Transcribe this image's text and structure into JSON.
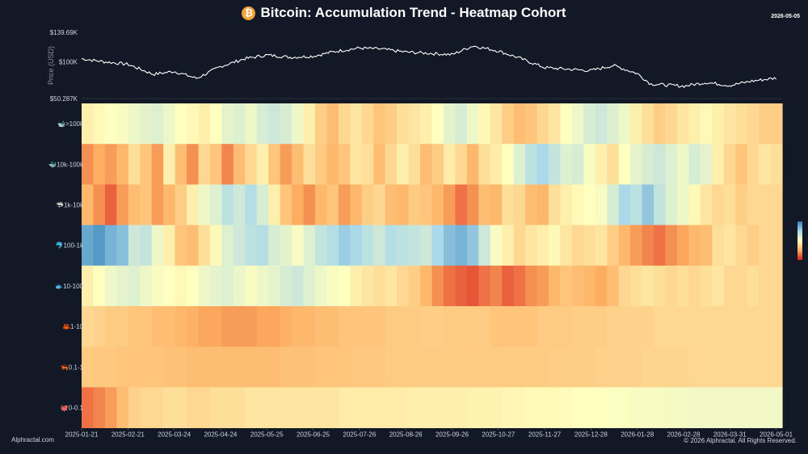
{
  "header": {
    "title": "Bitcoin: Accumulation Trend - Heatmap Cohort",
    "date": "2026-05-05",
    "icon": "bitcoin-icon",
    "icon_glyph": "₿"
  },
  "footer": {
    "left": "Alphractal.com",
    "right": "© 2026 Alphractal. All Rights Reserved."
  },
  "colors": {
    "background": "#121826",
    "price_line": "#ffffff",
    "scale": [
      "#2c7bb6",
      "#abd9e9",
      "#ffffbf",
      "#fdae61",
      "#d7191c"
    ]
  },
  "chart_data": [
    {
      "type": "line",
      "ylabel": "Price (USD)",
      "ytick_labels": [
        "$139.69K",
        "$100K",
        "$50.287K"
      ],
      "ylim": [
        50287,
        139690
      ],
      "x_start": "2025-01-21",
      "x_end": "2026-05-05",
      "series": [
        {
          "x": [
            "2025-01-21",
            "2025-02-05",
            "2025-02-21",
            "2025-03-10",
            "2025-03-24",
            "2025-04-08",
            "2025-04-24",
            "2025-05-10",
            "2025-05-25",
            "2025-06-10",
            "2025-06-25",
            "2025-07-10",
            "2025-07-26",
            "2025-08-10",
            "2025-08-26",
            "2025-09-10",
            "2025-09-26",
            "2025-10-10",
            "2025-10-27",
            "2025-11-10",
            "2025-11-27",
            "2025-12-12",
            "2025-12-28",
            "2026-01-12",
            "2026-01-28",
            "2026-02-06",
            "2026-02-28",
            "2026-03-15",
            "2026-03-31",
            "2026-04-15",
            "2026-05-01"
          ],
          "y": [
            104000,
            100000,
            96500,
            83000,
            87000,
            77500,
            93500,
            104000,
            109000,
            106000,
            107500,
            114000,
            118500,
            117000,
            113000,
            111500,
            109500,
            121500,
            114500,
            105000,
            92000,
            90000,
            88000,
            95000,
            84000,
            70000,
            67000,
            72000,
            68000,
            74000,
            78000
          ]
        }
      ]
    },
    {
      "type": "heatmap",
      "rows": [
        "🐋>100k",
        "🐳10k-100k",
        "🦈1k-10k",
        "🐬100-1k",
        "🐟10-100",
        "🦀1-10",
        "🦐0.1-1",
        "🐙0-0.1"
      ],
      "x_tick_labels": [
        "2025-01-21",
        "2025-02-21",
        "2025-03-24",
        "2025-04-24",
        "2025-05-25",
        "2025-06-25",
        "2025-07-26",
        "2025-08-26",
        "2025-09-26",
        "2025-10-27",
        "2025-11-27",
        "2025-12-28",
        "2026-01-28",
        "2026-02-28",
        "2026-03-31",
        "2026-05-01"
      ],
      "value_range": [
        0,
        1
      ],
      "column_count": 60,
      "values": [
        [
          0.55,
          0.52,
          0.5,
          0.48,
          0.45,
          0.42,
          0.4,
          0.45,
          0.5,
          0.52,
          0.55,
          0.5,
          0.42,
          0.4,
          0.45,
          0.38,
          0.35,
          0.38,
          0.45,
          0.55,
          0.65,
          0.7,
          0.62,
          0.58,
          0.62,
          0.68,
          0.65,
          0.6,
          0.58,
          0.55,
          0.5,
          0.42,
          0.38,
          0.45,
          0.52,
          0.58,
          0.65,
          0.7,
          0.68,
          0.62,
          0.58,
          0.5,
          0.45,
          0.38,
          0.35,
          0.4,
          0.45,
          0.55,
          0.6,
          0.65,
          0.62,
          0.58,
          0.55,
          0.52,
          0.55,
          0.58,
          0.6,
          0.62,
          0.65,
          0.65
        ],
        [
          0.8,
          0.75,
          0.78,
          0.72,
          0.6,
          0.68,
          0.78,
          0.55,
          0.7,
          0.8,
          0.62,
          0.68,
          0.82,
          0.7,
          0.62,
          0.55,
          0.68,
          0.78,
          0.7,
          0.6,
          0.66,
          0.72,
          0.68,
          0.58,
          0.6,
          0.7,
          0.62,
          0.55,
          0.6,
          0.7,
          0.66,
          0.56,
          0.62,
          0.72,
          0.6,
          0.56,
          0.5,
          0.4,
          0.3,
          0.25,
          0.32,
          0.4,
          0.38,
          0.48,
          0.55,
          0.6,
          0.5,
          0.42,
          0.38,
          0.35,
          0.4,
          0.45,
          0.38,
          0.42,
          0.55,
          0.62,
          0.68,
          0.62,
          0.58,
          0.6
        ],
        [
          0.72,
          0.8,
          0.88,
          0.78,
          0.7,
          0.68,
          0.78,
          0.72,
          0.65,
          0.55,
          0.45,
          0.4,
          0.3,
          0.35,
          0.28,
          0.38,
          0.55,
          0.68,
          0.75,
          0.8,
          0.72,
          0.68,
          0.78,
          0.72,
          0.65,
          0.62,
          0.7,
          0.72,
          0.66,
          0.68,
          0.72,
          0.78,
          0.85,
          0.8,
          0.7,
          0.72,
          0.6,
          0.62,
          0.7,
          0.72,
          0.6,
          0.55,
          0.52,
          0.5,
          0.48,
          0.38,
          0.25,
          0.3,
          0.2,
          0.32,
          0.4,
          0.45,
          0.52,
          0.58,
          0.62,
          0.6,
          0.65,
          0.62,
          0.62,
          0.62
        ],
        [
          0.12,
          0.08,
          0.15,
          0.18,
          0.35,
          0.32,
          0.45,
          0.55,
          0.68,
          0.7,
          0.6,
          0.52,
          0.4,
          0.35,
          0.3,
          0.28,
          0.38,
          0.42,
          0.48,
          0.4,
          0.32,
          0.28,
          0.22,
          0.25,
          0.3,
          0.35,
          0.28,
          0.3,
          0.32,
          0.35,
          0.25,
          0.18,
          0.15,
          0.2,
          0.35,
          0.48,
          0.55,
          0.62,
          0.58,
          0.55,
          0.52,
          0.58,
          0.62,
          0.6,
          0.58,
          0.65,
          0.72,
          0.78,
          0.82,
          0.85,
          0.8,
          0.76,
          0.72,
          0.7,
          0.6,
          0.58,
          0.62,
          0.65,
          0.62,
          0.62
        ],
        [
          0.55,
          0.5,
          0.45,
          0.42,
          0.4,
          0.45,
          0.48,
          0.5,
          0.52,
          0.5,
          0.45,
          0.42,
          0.4,
          0.44,
          0.48,
          0.45,
          0.42,
          0.38,
          0.35,
          0.4,
          0.45,
          0.48,
          0.5,
          0.55,
          0.58,
          0.6,
          0.58,
          0.62,
          0.65,
          0.72,
          0.8,
          0.85,
          0.88,
          0.9,
          0.85,
          0.82,
          0.88,
          0.85,
          0.8,
          0.78,
          0.72,
          0.68,
          0.7,
          0.72,
          0.75,
          0.7,
          0.62,
          0.6,
          0.58,
          0.6,
          0.62,
          0.6,
          0.62,
          0.6,
          0.58,
          0.62,
          0.62,
          0.6,
          0.62,
          0.62
        ],
        [
          0.62,
          0.64,
          0.66,
          0.66,
          0.68,
          0.68,
          0.7,
          0.7,
          0.72,
          0.74,
          0.76,
          0.76,
          0.78,
          0.78,
          0.78,
          0.76,
          0.76,
          0.74,
          0.72,
          0.72,
          0.7,
          0.7,
          0.68,
          0.68,
          0.68,
          0.68,
          0.66,
          0.66,
          0.66,
          0.65,
          0.65,
          0.66,
          0.66,
          0.66,
          0.66,
          0.68,
          0.68,
          0.68,
          0.68,
          0.66,
          0.66,
          0.66,
          0.65,
          0.65,
          0.65,
          0.64,
          0.64,
          0.64,
          0.64,
          0.62,
          0.62,
          0.62,
          0.62,
          0.62,
          0.62,
          0.62,
          0.62,
          0.62,
          0.62,
          0.62
        ],
        [
          0.66,
          0.67,
          0.67,
          0.68,
          0.68,
          0.68,
          0.68,
          0.69,
          0.69,
          0.7,
          0.7,
          0.7,
          0.7,
          0.7,
          0.7,
          0.7,
          0.7,
          0.69,
          0.69,
          0.69,
          0.68,
          0.68,
          0.68,
          0.67,
          0.67,
          0.67,
          0.66,
          0.66,
          0.66,
          0.66,
          0.66,
          0.66,
          0.66,
          0.66,
          0.66,
          0.66,
          0.66,
          0.66,
          0.66,
          0.66,
          0.65,
          0.65,
          0.65,
          0.65,
          0.64,
          0.64,
          0.64,
          0.64,
          0.63,
          0.63,
          0.63,
          0.63,
          0.62,
          0.62,
          0.62,
          0.62,
          0.62,
          0.62,
          0.62,
          0.62
        ],
        [
          0.85,
          0.82,
          0.78,
          0.7,
          0.64,
          0.62,
          0.62,
          0.6,
          0.6,
          0.62,
          0.62,
          0.6,
          0.6,
          0.6,
          0.58,
          0.58,
          0.58,
          0.58,
          0.58,
          0.58,
          0.58,
          0.58,
          0.56,
          0.56,
          0.56,
          0.56,
          0.56,
          0.56,
          0.55,
          0.55,
          0.55,
          0.55,
          0.55,
          0.54,
          0.54,
          0.54,
          0.53,
          0.53,
          0.52,
          0.52,
          0.52,
          0.51,
          0.5,
          0.5,
          0.5,
          0.49,
          0.49,
          0.48,
          0.48,
          0.48,
          0.47,
          0.47,
          0.46,
          0.46,
          0.46,
          0.46,
          0.46,
          0.46,
          0.46,
          0.46
        ]
      ]
    }
  ]
}
